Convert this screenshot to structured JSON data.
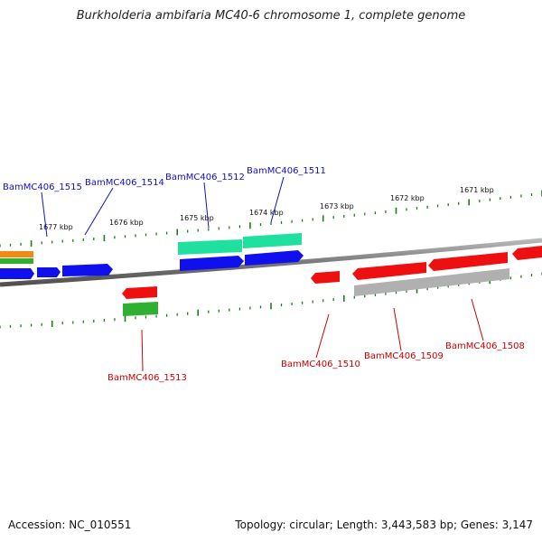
{
  "title": "Burkholderia ambifaria MC40-6 chromosome 1, complete genome",
  "footer": {
    "accession": "Accession: NC_010551",
    "summary": "Topology: circular; Length: 3,443,583 bp; Genes: 3,147"
  },
  "colors": {
    "backbone": "#808080",
    "tick": "#1e7a1e",
    "forward_label": "#1010c0",
    "reverse_label": "#cc0000",
    "blue": "#1010ee",
    "teal": "#20e0a0",
    "green": "#30b030",
    "orange": "#f08c10",
    "red": "#ee1010",
    "gray": "#b0b0b0"
  },
  "scale": {
    "unit": "kbp",
    "labels": [
      "1677 kbp",
      "1676 kbp",
      "1675 kbp",
      "1674 kbp",
      "1673 kbp",
      "1672 kbp",
      "1671 kbp"
    ]
  },
  "genes": [
    {
      "name": "BamMC406_1515",
      "strand": "forward"
    },
    {
      "name": "BamMC406_1514",
      "strand": "forward"
    },
    {
      "name": "BamMC406_1512",
      "strand": "forward"
    },
    {
      "name": "BamMC406_1511",
      "strand": "forward"
    },
    {
      "name": "BamMC406_1513",
      "strand": "reverse"
    },
    {
      "name": "BamMC406_1510",
      "strand": "reverse"
    },
    {
      "name": "BamMC406_1509",
      "strand": "reverse"
    },
    {
      "name": "BamMC406_1508",
      "strand": "reverse"
    }
  ]
}
